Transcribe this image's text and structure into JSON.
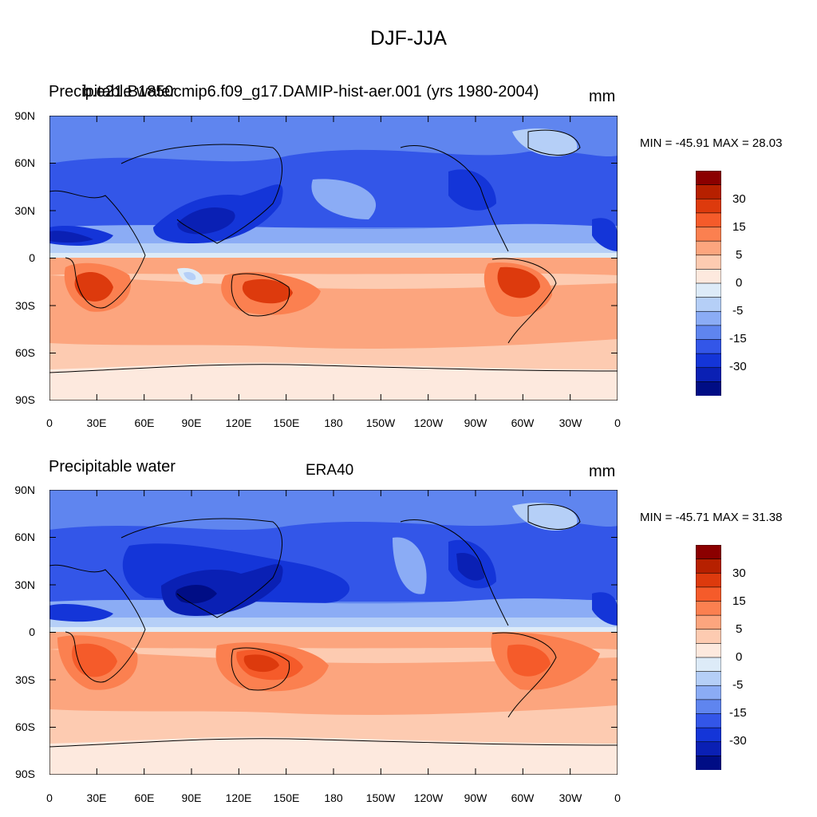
{
  "title": "DJF-JJA",
  "x_ticks": [
    "0",
    "30E",
    "60E",
    "90E",
    "120E",
    "150E",
    "180",
    "150W",
    "120W",
    "90W",
    "60W",
    "30W",
    "0"
  ],
  "y_ticks": [
    "90N",
    "60N",
    "30N",
    "0",
    "30S",
    "60S",
    "90S"
  ],
  "colorbar": {
    "labels": [
      "30",
      "15",
      "5",
      "0",
      "-5",
      "-15",
      "-30"
    ],
    "colors": [
      "#8b0000",
      "#b62000",
      "#dd3a0d",
      "#f55b2a",
      "#fb8050",
      "#fca57e",
      "#fdcbb1",
      "#fde9de",
      "#ddebf8",
      "#b5cff7",
      "#8bacf5",
      "#5f85ef",
      "#3356e8",
      "#1435d8",
      "#0a20b4",
      "#000d85"
    ]
  },
  "panels": [
    {
      "left_title": "Precipitable water",
      "center_title": "b.e21.B1850cmip6.f09_g17.DAMIP-hist-aer.001 (yrs 1980-2004)",
      "units": "mm",
      "min_max": "MIN = -45.91 MAX =  28.03"
    },
    {
      "left_title": "Precipitable water",
      "center_title": "ERA40",
      "units": "mm",
      "min_max": "MIN = -45.71 MAX =  31.38"
    }
  ]
}
